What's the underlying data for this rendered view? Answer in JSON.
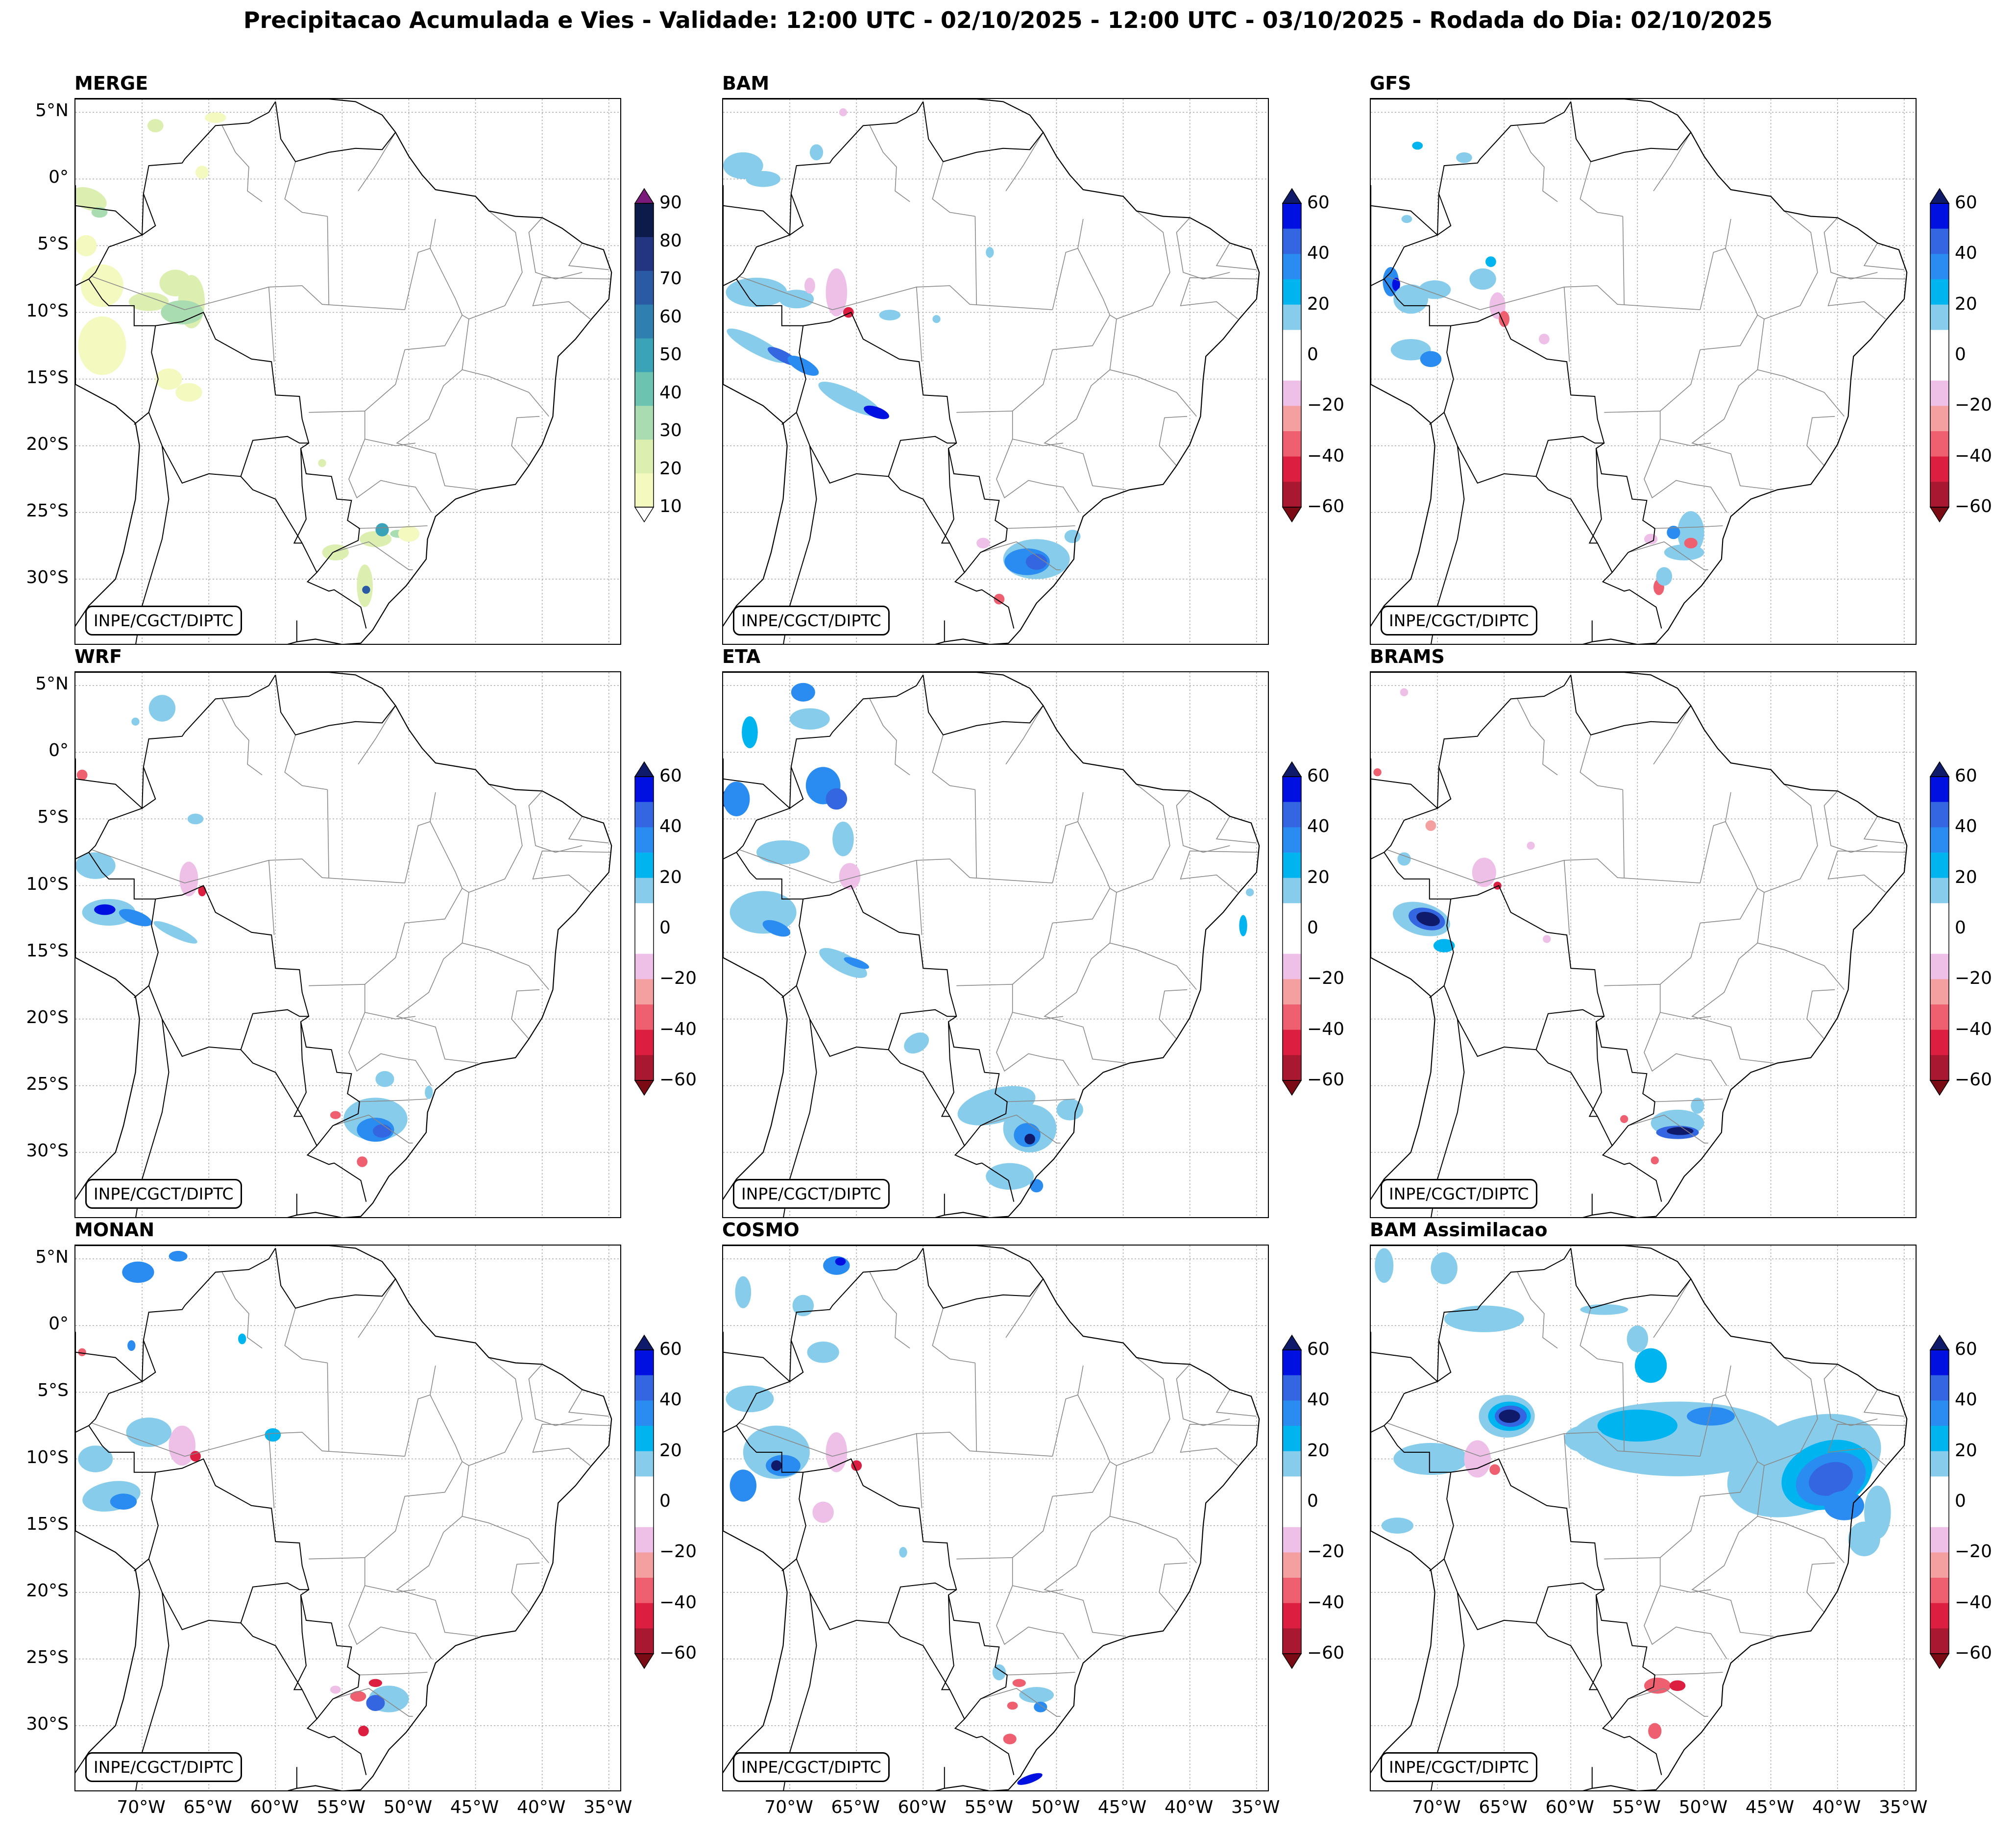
{
  "title": "Precipitacao Acumulada e Vies - Validade: 12:00 UTC - 02/10/2025 - 12:00 UTC - 03/10/2025 - Rodada do Dia: 02/10/2025",
  "credit": "INPE/CGCT/DIPTC",
  "panels": [
    {
      "name": "MERGE",
      "kind": "precip"
    },
    {
      "name": "BAM",
      "kind": "bias"
    },
    {
      "name": "GFS",
      "kind": "bias"
    },
    {
      "name": "WRF",
      "kind": "bias"
    },
    {
      "name": "ETA",
      "kind": "bias"
    },
    {
      "name": "BRAMS",
      "kind": "bias"
    },
    {
      "name": "MONAN",
      "kind": "bias"
    },
    {
      "name": "COSMO",
      "kind": "bias"
    },
    {
      "name": "BAM Assimilacao",
      "kind": "bias"
    }
  ],
  "lat_ticks": [
    "5°N",
    "0°",
    "5°S",
    "10°S",
    "15°S",
    "20°S",
    "25°S",
    "30°S"
  ],
  "lon_ticks": [
    "70°W",
    "65°W",
    "60°W",
    "55°W",
    "50°W",
    "45°W",
    "40°W",
    "35°W"
  ],
  "colorbar_precip": {
    "labels": [
      "90",
      "80",
      "70",
      "60",
      "50",
      "40",
      "30",
      "20",
      "10"
    ],
    "colors": [
      "#0d1b4a",
      "#233580",
      "#2a5aa3",
      "#2f7fb0",
      "#3aa3b8",
      "#6cc3b0",
      "#a9dcb0",
      "#dcefb0",
      "#f4f9c0"
    ],
    "extend_max_color": "#7a1a7a"
  },
  "colorbar_bias": {
    "labels": [
      "60",
      "40",
      "20",
      "0",
      "−20",
      "−40",
      "−60"
    ],
    "colors": [
      "#0010e0",
      "#3366e0",
      "#2a8cf0",
      "#00b4f0",
      "#87cdeb",
      "#ffffff",
      "#ffffff",
      "#eec0e8",
      "#f5a0a0",
      "#ee6070",
      "#dc1e40",
      "#a81830"
    ],
    "extend_max_color": "#101a6a",
    "extend_min_color": "#7a0a14"
  },
  "colors": {
    "border": "#000000",
    "state_border": "#888888",
    "grid": "#aaaaaa"
  }
}
